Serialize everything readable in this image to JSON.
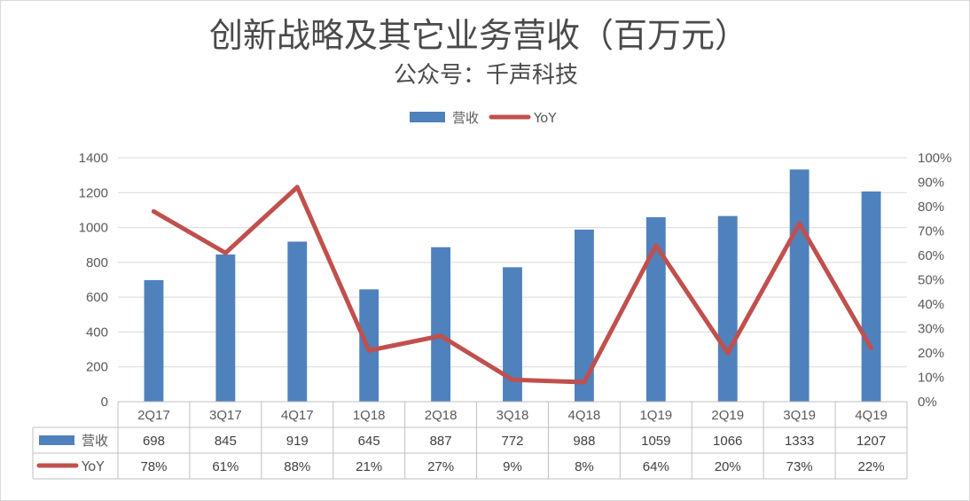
{
  "chart_data": {
    "type": "bar",
    "title": "创新战略及其它业务营收（百万元）",
    "subtitle": "公众号：千声科技",
    "categories": [
      "2Q17",
      "3Q17",
      "4Q17",
      "1Q18",
      "2Q18",
      "3Q18",
      "4Q18",
      "1Q19",
      "2Q19",
      "3Q19",
      "4Q19"
    ],
    "series": [
      {
        "name": "营收",
        "type": "bar",
        "axis": "left",
        "color": "#4f81bd",
        "values": [
          698,
          845,
          919,
          645,
          887,
          772,
          988,
          1059,
          1066,
          1333,
          1207
        ]
      },
      {
        "name": "YoY",
        "type": "line",
        "axis": "right",
        "color": "#c0504d",
        "values": [
          78,
          61,
          88,
          21,
          27,
          9,
          8,
          64,
          20,
          73,
          22
        ],
        "labels": [
          "78%",
          "61%",
          "88%",
          "21%",
          "27%",
          "9%",
          "8%",
          "64%",
          "20%",
          "73%",
          "22%"
        ]
      }
    ],
    "y_left": {
      "min": 0,
      "max": 1400,
      "step": 200,
      "ticks": [
        "0",
        "200",
        "400",
        "600",
        "800",
        "1000",
        "1200",
        "1400"
      ]
    },
    "y_right": {
      "min": 0,
      "max": 100,
      "step": 10,
      "ticks": [
        "0%",
        "10%",
        "20%",
        "30%",
        "40%",
        "50%",
        "60%",
        "70%",
        "80%",
        "90%",
        "100%"
      ]
    },
    "legend_position": "top",
    "grid": true,
    "data_table": true
  }
}
